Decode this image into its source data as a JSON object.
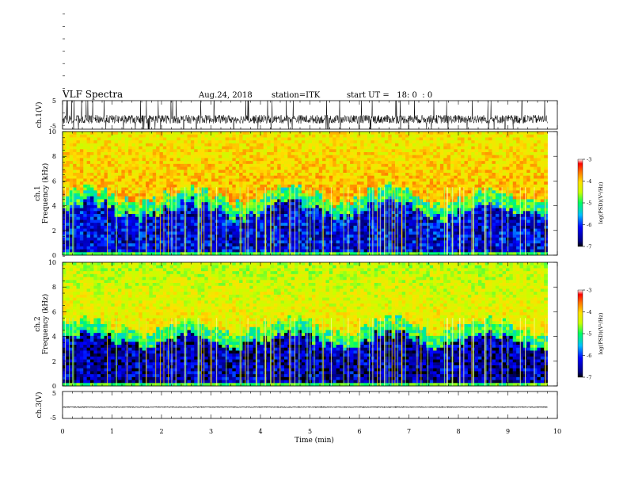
{
  "header": {
    "title": "VLF Spectra",
    "date": "Aug.24, 2018",
    "station": "station=ITK",
    "start": "start UT =   18: 0  : 0"
  },
  "chart_data": [
    {
      "type": "line",
      "ylabel": "ch.1(V)",
      "xlim": [
        0,
        10
      ],
      "ylim": [
        -5,
        5
      ],
      "yticks": [
        "5",
        "-5"
      ],
      "baseline": -1.5,
      "noise_amplitude": 1.5,
      "spikes": "frequent spikes to about ±5 V"
    },
    {
      "type": "heatmap",
      "ylabel": "Frequency (kHz)",
      "channel_label": "ch.1",
      "xlim": [
        0,
        10
      ],
      "ylim": [
        0,
        10
      ],
      "yticks": [
        "0",
        "2",
        "4",
        "6",
        "8",
        "10"
      ],
      "data_end_min": 9.8,
      "band_edge_khz": 4.3,
      "low_band_log_psd": -6.3,
      "high_band_log_psd": -3.6,
      "colorbar": {
        "label": "log(PSD)(V²/Hz)",
        "ticks": [
          "-3",
          "-4",
          "-5",
          "-6",
          "-7"
        ],
        "range": [
          -7,
          -3
        ]
      }
    },
    {
      "type": "heatmap",
      "ylabel": "Frequency (kHz)",
      "channel_label": "ch.2",
      "xlim": [
        0,
        10
      ],
      "ylim": [
        0,
        10
      ],
      "yticks": [
        "0",
        "2",
        "4",
        "6",
        "8",
        "10"
      ],
      "data_end_min": 9.8,
      "band_edge_khz": 4.3,
      "low_band_log_psd": -6.5,
      "high_band_log_psd": -3.9,
      "colorbar": {
        "label": "log(PSD)(V²/Hz)",
        "ticks": [
          "-3",
          "-4",
          "-5",
          "-6",
          "-7"
        ],
        "range": [
          -7,
          -3
        ]
      }
    },
    {
      "type": "line",
      "ylabel": "ch.3(V)",
      "xlim": [
        0,
        10
      ],
      "ylim": [
        -5,
        5
      ],
      "yticks": [
        "5",
        "-5"
      ],
      "baseline": -0.8,
      "noise_amplitude": 0.15
    }
  ],
  "xaxis": {
    "label": "Time (min)",
    "ticks": [
      "0",
      "1",
      "2",
      "3",
      "4",
      "5",
      "6",
      "7",
      "8",
      "9",
      "10"
    ]
  }
}
